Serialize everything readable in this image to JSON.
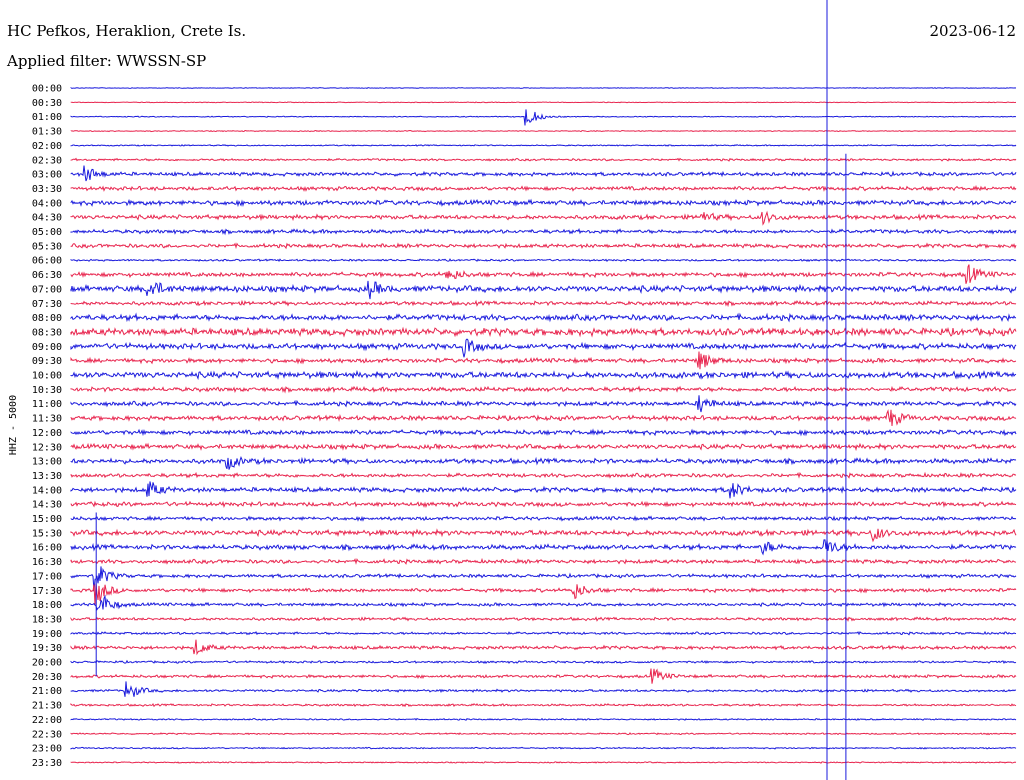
{
  "header": {
    "station": "HC Pefkos, Heraklion, Crete Is.",
    "filter": "Applied filter: WWSSN-SP",
    "date": "2023-06-12"
  },
  "chart_data": {
    "type": "helicorder",
    "ylabel": "HHZ - 5000",
    "colors": {
      "even": "#1a1adc",
      "odd": "#e8254e",
      "marker": "#1a1adc"
    },
    "rows": [
      "00:00",
      "00:30",
      "01:00",
      "01:30",
      "02:00",
      "02:30",
      "03:00",
      "03:30",
      "04:00",
      "04:30",
      "05:00",
      "05:30",
      "06:00",
      "06:30",
      "07:00",
      "07:30",
      "08:00",
      "08:30",
      "09:00",
      "09:30",
      "10:00",
      "10:30",
      "11:00",
      "11:30",
      "12:00",
      "12:30",
      "13:00",
      "13:30",
      "14:00",
      "14:30",
      "15:00",
      "15:30",
      "16:00",
      "16:30",
      "17:00",
      "17:30",
      "18:00",
      "18:30",
      "19:00",
      "19:30",
      "20:00",
      "20:30",
      "21:00",
      "21:30",
      "22:00",
      "22:30",
      "23:00",
      "23:30"
    ],
    "noise_level": [
      0.3,
      0.3,
      0.4,
      0.4,
      0.5,
      0.9,
      1.5,
      1.6,
      2.0,
      1.8,
      1.6,
      1.6,
      0.8,
      1.8,
      2.6,
      1.6,
      2.4,
      3.0,
      2.4,
      1.8,
      2.6,
      1.8,
      1.8,
      1.9,
      1.9,
      2.0,
      2.0,
      1.6,
      1.9,
      1.8,
      1.5,
      2.2,
      2.0,
      1.6,
      1.4,
      1.5,
      1.3,
      1.2,
      1.0,
      1.4,
      0.9,
      1.2,
      1.0,
      0.9,
      0.6,
      0.6,
      0.6,
      0.5
    ],
    "events": [
      {
        "row": "01:00",
        "minute": 14.5,
        "amplitude": 10
      },
      {
        "row": "03:00",
        "minute": 0.5,
        "amplitude": 8
      },
      {
        "row": "04:30",
        "minute": 22,
        "amplitude": 6
      },
      {
        "row": "04:30",
        "minute": 20,
        "amplitude": 6
      },
      {
        "row": "06:30",
        "minute": 12,
        "amplitude": 6
      },
      {
        "row": "06:30",
        "minute": 28.5,
        "amplitude": 9
      },
      {
        "row": "07:00",
        "minute": 2.5,
        "amplitude": 10
      },
      {
        "row": "07:00",
        "minute": 9.5,
        "amplitude": 7
      },
      {
        "row": "09:00",
        "minute": 12.5,
        "amplitude": 8
      },
      {
        "row": "09:30",
        "minute": 20,
        "amplitude": 9
      },
      {
        "row": "11:00",
        "minute": 20,
        "amplitude": 8
      },
      {
        "row": "11:30",
        "minute": 26,
        "amplitude": 9
      },
      {
        "row": "13:00",
        "minute": 5,
        "amplitude": 7
      },
      {
        "row": "14:00",
        "minute": 2.5,
        "amplitude": 8
      },
      {
        "row": "14:00",
        "minute": 21,
        "amplitude": 8
      },
      {
        "row": "15:30",
        "minute": 25.5,
        "amplitude": 7
      },
      {
        "row": "16:00",
        "minute": 22,
        "amplitude": 6
      },
      {
        "row": "16:00",
        "minute": 24,
        "amplitude": 8
      },
      {
        "row": "17:00",
        "minute": 0.8,
        "amplitude": 14
      },
      {
        "row": "17:30",
        "minute": 0.8,
        "amplitude": 14
      },
      {
        "row": "18:00",
        "minute": 0.9,
        "amplitude": 14
      },
      {
        "row": "17:30",
        "minute": 16,
        "amplitude": 8
      },
      {
        "row": "19:30",
        "minute": 4,
        "amplitude": 7
      },
      {
        "row": "20:30",
        "minute": 18.5,
        "amplitude": 7
      },
      {
        "row": "21:00",
        "minute": 1.8,
        "amplitude": 10
      }
    ],
    "markers": [
      {
        "minute": 24.0,
        "from_row": "00:00",
        "to_row": "23:30"
      },
      {
        "minute": 24.6,
        "from_row": "02:30",
        "to_row": "23:30"
      },
      {
        "minute": 0.8,
        "from_row": "15:00",
        "to_row": "20:30"
      }
    ]
  }
}
